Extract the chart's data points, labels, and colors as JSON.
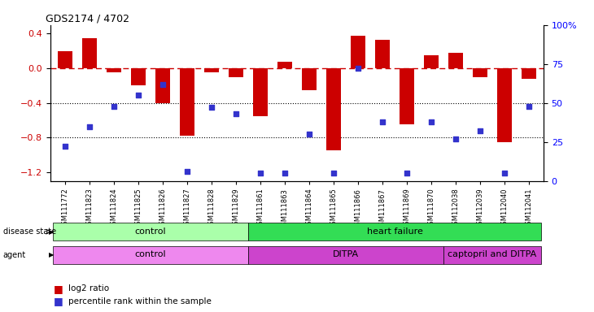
{
  "title": "GDS2174 / 4702",
  "samples": [
    "GSM111772",
    "GSM111823",
    "GSM111824",
    "GSM111825",
    "GSM111826",
    "GSM111827",
    "GSM111828",
    "GSM111829",
    "GSM111861",
    "GSM111863",
    "GSM111864",
    "GSM111865",
    "GSM111866",
    "GSM111867",
    "GSM111869",
    "GSM111870",
    "GSM112038",
    "GSM112039",
    "GSM112040",
    "GSM112041"
  ],
  "log2_ratio": [
    0.2,
    0.35,
    -0.05,
    -0.2,
    -0.4,
    -0.78,
    -0.05,
    -0.1,
    -0.55,
    0.08,
    -0.25,
    -0.95,
    0.38,
    0.33,
    -0.65,
    0.15,
    0.18,
    -0.1,
    -0.85,
    -0.12
  ],
  "percentile_rank": [
    22,
    35,
    48,
    55,
    62,
    6,
    47,
    43,
    5,
    5,
    30,
    5,
    72,
    38,
    5,
    38,
    27,
    32,
    5,
    48
  ],
  "bar_color": "#cc0000",
  "dot_color": "#3333cc",
  "dashed_line_color": "#cc0000",
  "ylim_left": [
    -1.3,
    0.5
  ],
  "ylim_right": [
    0,
    100
  ],
  "yticks_left": [
    -1.2,
    -0.8,
    -0.4,
    0.0,
    0.4
  ],
  "yticks_right": [
    0,
    25,
    50,
    75,
    100
  ],
  "disease_state": [
    {
      "label": "control",
      "start": 0,
      "end": 8,
      "color": "#aaffaa"
    },
    {
      "label": "heart failure",
      "start": 8,
      "end": 20,
      "color": "#33dd55"
    }
  ],
  "agent": [
    {
      "label": "control",
      "start": 0,
      "end": 8,
      "color": "#ee88ee"
    },
    {
      "label": "DITPA",
      "start": 8,
      "end": 16,
      "color": "#cc44cc"
    },
    {
      "label": "captopril and DITPA",
      "start": 16,
      "end": 20,
      "color": "#cc44cc"
    }
  ],
  "grid_dotted_values": [
    -0.4,
    -0.8
  ],
  "background_color": "#ffffff",
  "plot_bg": "#ffffff"
}
